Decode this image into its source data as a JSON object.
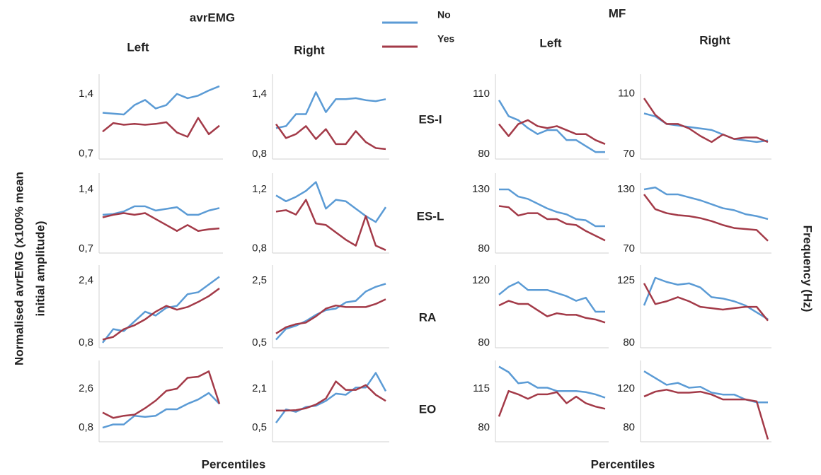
{
  "figure": {
    "groups": [
      "avrEMG",
      "MF"
    ],
    "sides": [
      "Left",
      "Right",
      "Left",
      "Right"
    ],
    "muscles": [
      "ES-I",
      "ES-L",
      "RA",
      "EO"
    ],
    "y_title": [
      "Normalised avrEMG (x100% mean",
      "initial amplitude)"
    ],
    "y2_title": "Frequency (Hz)",
    "x_titles": [
      "Percentiles",
      "Percentiles"
    ]
  },
  "chart_data": [
    {
      "type": "line",
      "categories": [
        null,
        null,
        null,
        null,
        null,
        null,
        null,
        null,
        null,
        null,
        null,
        null
      ],
      "series": [
        {
          "name": "No",
          "color": "#5b9bd5",
          "values": [
            1.18,
            1.17,
            1.16,
            1.27,
            1.33,
            1.23,
            1.27,
            1.4,
            1.35,
            1.38,
            1.44,
            1.49
          ]
        },
        {
          "name": "Yes",
          "color": "#a33a48",
          "values": [
            0.96,
            1.06,
            1.04,
            1.05,
            1.04,
            1.05,
            1.07,
            0.95,
            0.9,
            1.12,
            0.93,
            1.03
          ]
        }
      ],
      "ylim": [
        0.64,
        1.63
      ],
      "yticks": [
        {
          "value": 0.7,
          "label": "0,7"
        },
        {
          "value": 1.4,
          "label": "1,4"
        }
      ]
    },
    {
      "type": "line",
      "categories": [
        null,
        null,
        null,
        null,
        null,
        null,
        null,
        null,
        null,
        null,
        null,
        null
      ],
      "series": [
        {
          "color": "#5b9bd5",
          "values": [
            1.06,
            1.08,
            1.2,
            1.2,
            1.42,
            1.22,
            1.35,
            1.35,
            1.36,
            1.34,
            1.33,
            1.35
          ]
        },
        {
          "color": "#a33a48",
          "values": [
            1.1,
            0.96,
            1.0,
            1.08,
            0.95,
            1.05,
            0.9,
            0.9,
            1.03,
            0.92,
            0.86,
            0.85
          ]
        }
      ],
      "ylim": [
        0.75,
        1.6
      ],
      "yticks": [
        {
          "value": 0.8,
          "label": "0,8"
        },
        {
          "value": 1.4,
          "label": "1,4"
        }
      ]
    },
    {
      "type": "line",
      "categories": [
        null,
        null,
        null,
        null,
        null,
        null,
        null,
        null,
        null,
        null,
        null,
        null
      ],
      "series": [
        {
          "color": "#5b9bd5",
          "values": [
            107,
            99,
            97,
            93,
            90,
            92,
            92,
            87,
            87,
            84,
            81,
            81
          ]
        },
        {
          "color": "#a33a48",
          "values": [
            95,
            89,
            95,
            97,
            94,
            93,
            94,
            92,
            90,
            90,
            87,
            85
          ]
        }
      ],
      "ylim": [
        77.5,
        120
      ],
      "yticks": [
        80,
        110
      ]
    },
    {
      "type": "line",
      "categories": [
        null,
        null,
        null,
        null,
        null,
        null,
        null,
        null,
        null,
        null,
        null,
        null
      ],
      "series": [
        {
          "color": "#5b9bd5",
          "values": [
            97,
            95,
            90,
            89,
            88,
            87,
            86,
            83,
            80,
            79,
            78,
            79
          ]
        },
        {
          "color": "#a33a48",
          "values": [
            107,
            96,
            90,
            90,
            87,
            82,
            78,
            83,
            80,
            81,
            81,
            78
          ]
        }
      ],
      "ylim": [
        66.7,
        123
      ],
      "yticks": [
        70,
        110
      ]
    },
    {
      "type": "line",
      "categories": [
        null,
        null,
        null,
        null,
        null,
        null,
        null,
        null,
        null,
        null,
        null,
        null
      ],
      "series": [
        {
          "color": "#5b9bd5",
          "values": [
            1.1,
            1.11,
            1.14,
            1.2,
            1.2,
            1.15,
            1.17,
            1.19,
            1.1,
            1.1,
            1.15,
            1.18
          ]
        },
        {
          "color": "#a33a48",
          "values": [
            1.07,
            1.1,
            1.12,
            1.1,
            1.12,
            1.05,
            0.98,
            0.91,
            0.98,
            0.91,
            0.93,
            0.94
          ]
        }
      ],
      "ylim": [
        0.65,
        1.59
      ],
      "yticks": [
        {
          "value": 0.7,
          "label": "0,7"
        },
        {
          "value": 1.4,
          "label": "1,4"
        }
      ]
    },
    {
      "type": "line",
      "categories": [
        null,
        null,
        null,
        null,
        null,
        null,
        null,
        null,
        null,
        null,
        null,
        null
      ],
      "series": [
        {
          "color": "#5b9bd5",
          "values": [
            1.16,
            1.12,
            1.15,
            1.19,
            1.25,
            1.07,
            1.13,
            1.12,
            1.07,
            1.02,
            0.98,
            1.08
          ]
        },
        {
          "color": "#a33a48",
          "values": [
            1.05,
            1.06,
            1.03,
            1.13,
            0.97,
            0.96,
            0.91,
            0.86,
            0.82,
            1.02,
            0.82,
            0.79
          ]
        }
      ],
      "ylim": [
        0.77,
        1.31
      ],
      "yticks": [
        {
          "value": 0.8,
          "label": "0,8"
        },
        {
          "value": 1.2,
          "label": "1,2"
        }
      ]
    },
    {
      "type": "line",
      "categories": [
        null,
        null,
        null,
        null,
        null,
        null,
        null,
        null,
        null,
        null,
        null,
        null
      ],
      "series": [
        {
          "color": "#5b9bd5",
          "values": [
            130,
            130,
            124,
            122,
            118,
            114,
            111,
            109,
            105,
            104,
            99,
            99
          ]
        },
        {
          "color": "#a33a48",
          "values": [
            116,
            115,
            108,
            110,
            110,
            105,
            105,
            101,
            100,
            95,
            91,
            87
          ]
        }
      ],
      "ylim": [
        76.4,
        143.7
      ],
      "yticks": [
        80,
        130
      ]
    },
    {
      "type": "line",
      "categories": [
        null,
        null,
        null,
        null,
        null,
        null,
        null,
        null,
        null,
        null,
        null,
        null
      ],
      "series": [
        {
          "color": "#5b9bd5",
          "values": [
            130,
            132,
            125,
            125,
            122,
            119,
            115,
            111,
            109,
            105,
            103,
            100
          ]
        },
        {
          "color": "#a33a48",
          "values": [
            125,
            110,
            106,
            104,
            103,
            101,
            98,
            94,
            91,
            90,
            89,
            78
          ]
        }
      ],
      "ylim": [
        65.7,
        146.4
      ],
      "yticks": [
        70,
        130
      ]
    },
    {
      "type": "line",
      "categories": [
        null,
        null,
        null,
        null,
        null,
        null,
        null,
        null,
        null,
        null,
        null,
        null
      ],
      "series": [
        {
          "color": "#5b9bd5",
          "values": [
            0.8,
            1.15,
            1.1,
            1.35,
            1.6,
            1.5,
            1.7,
            1.75,
            2.05,
            2.1,
            2.3,
            2.5
          ]
        },
        {
          "color": "#a33a48",
          "values": [
            0.88,
            0.95,
            1.15,
            1.25,
            1.4,
            1.6,
            1.75,
            1.65,
            1.72,
            1.85,
            2.0,
            2.2
          ]
        }
      ],
      "ylim": [
        0.67,
        2.8
      ],
      "yticks": [
        {
          "value": 0.8,
          "label": "0,8"
        },
        {
          "value": 2.4,
          "label": "2,4"
        }
      ]
    },
    {
      "type": "line",
      "categories": [
        null,
        null,
        null,
        null,
        null,
        null,
        null,
        null,
        null,
        null,
        null,
        null
      ],
      "series": [
        {
          "color": "#5b9bd5",
          "values": [
            0.6,
            0.95,
            1.05,
            1.2,
            1.4,
            1.55,
            1.6,
            1.8,
            1.85,
            2.15,
            2.3,
            2.4
          ]
        },
        {
          "color": "#a33a48",
          "values": [
            0.8,
            1.0,
            1.1,
            1.15,
            1.35,
            1.6,
            1.7,
            1.65,
            1.65,
            1.65,
            1.75,
            1.9
          ]
        }
      ],
      "ylim": [
        0.34,
        3.0
      ],
      "yticks": [
        {
          "value": 0.5,
          "label": "0,5"
        },
        {
          "value": 2.5,
          "label": "2,5"
        }
      ]
    },
    {
      "type": "line",
      "categories": [
        null,
        null,
        null,
        null,
        null,
        null,
        null,
        null,
        null,
        null,
        null,
        null
      ],
      "series": [
        {
          "color": "#5b9bd5",
          "values": [
            111,
            116,
            119,
            114,
            114,
            114,
            112,
            110,
            107,
            109,
            100,
            100
          ]
        },
        {
          "color": "#a33a48",
          "values": [
            104,
            107,
            105,
            105,
            101,
            97,
            99,
            98,
            98,
            96,
            95,
            93
          ]
        }
      ],
      "ylim": [
        76.8,
        130
      ],
      "yticks": [
        80,
        120
      ]
    },
    {
      "type": "line",
      "categories": [
        null,
        null,
        null,
        null,
        null,
        null,
        null,
        null,
        null,
        null,
        null,
        null
      ],
      "series": [
        {
          "color": "#5b9bd5",
          "values": [
            107,
            127,
            124,
            122,
            123,
            120,
            113,
            112,
            110,
            107,
            102,
            97
          ]
        },
        {
          "color": "#a33a48",
          "values": [
            123,
            108,
            110,
            113,
            110,
            106,
            105,
            104,
            105,
            106,
            106,
            96
          ]
        }
      ],
      "ylim": [
        76.4,
        136.2
      ],
      "yticks": [
        80,
        125
      ]
    },
    {
      "type": "line",
      "categories": [
        null,
        null,
        null,
        null,
        null,
        null,
        null,
        null,
        null,
        null,
        null,
        null
      ],
      "series": [
        {
          "color": "#5b9bd5",
          "values": [
            0.8,
            0.95,
            0.95,
            1.35,
            1.3,
            1.35,
            1.65,
            1.65,
            1.9,
            2.1,
            2.4,
            1.9
          ]
        },
        {
          "color": "#a33a48",
          "values": [
            1.5,
            1.25,
            1.35,
            1.4,
            1.7,
            2.05,
            2.5,
            2.6,
            3.1,
            3.15,
            3.4,
            1.9
          ]
        }
      ],
      "ylim": [
        0.15,
        3.9
      ],
      "yticks": [
        {
          "value": 0.8,
          "label": "0,8"
        },
        {
          "value": 2.6,
          "label": "2,6"
        }
      ]
    },
    {
      "type": "line",
      "categories": [
        null,
        null,
        null,
        null,
        null,
        null,
        null,
        null,
        null,
        null,
        null,
        null
      ],
      "series": [
        {
          "color": "#5b9bd5",
          "values": [
            0.7,
            1.25,
            1.15,
            1.35,
            1.4,
            1.6,
            1.9,
            1.85,
            2.15,
            2.15,
            2.75,
            2.0
          ]
        },
        {
          "color": "#a33a48",
          "values": [
            1.2,
            1.2,
            1.22,
            1.3,
            1.45,
            1.7,
            2.4,
            2.05,
            2.05,
            2.25,
            1.85,
            1.6
          ]
        }
      ],
      "ylim": [
        -0.08,
        3.26
      ],
      "yticks": [
        {
          "value": 0.5,
          "label": "0,5"
        },
        {
          "value": 2.1,
          "label": "2,1"
        }
      ]
    },
    {
      "type": "line",
      "categories": [
        null,
        null,
        null,
        null,
        null,
        null,
        null,
        null,
        null,
        null,
        null,
        null
      ],
      "series": [
        {
          "color": "#5b9bd5",
          "values": [
            135,
            130,
            120,
            121,
            116,
            116,
            113,
            113,
            113,
            112,
            110,
            107
          ]
        },
        {
          "color": "#a33a48",
          "values": [
            90,
            113,
            110,
            106,
            110,
            110,
            112,
            102,
            108,
            102,
            99,
            97
          ]
        }
      ],
      "ylim": [
        67.3,
        140.5
      ],
      "yticks": [
        80,
        115
      ]
    },
    {
      "type": "line",
      "categories": [
        null,
        null,
        null,
        null,
        null,
        null,
        null,
        null,
        null,
        null,
        null,
        null
      ],
      "series": [
        {
          "color": "#5b9bd5",
          "values": [
            138,
            131,
            124,
            126,
            121,
            122,
            116,
            114,
            114,
            109,
            106,
            106
          ]
        },
        {
          "color": "#a33a48",
          "values": [
            112,
            117,
            119,
            116,
            116,
            117,
            114,
            109,
            109,
            109,
            107,
            68
          ]
        }
      ],
      "ylim": [
        65.5,
        149
      ],
      "yticks": [
        80,
        120
      ]
    }
  ]
}
